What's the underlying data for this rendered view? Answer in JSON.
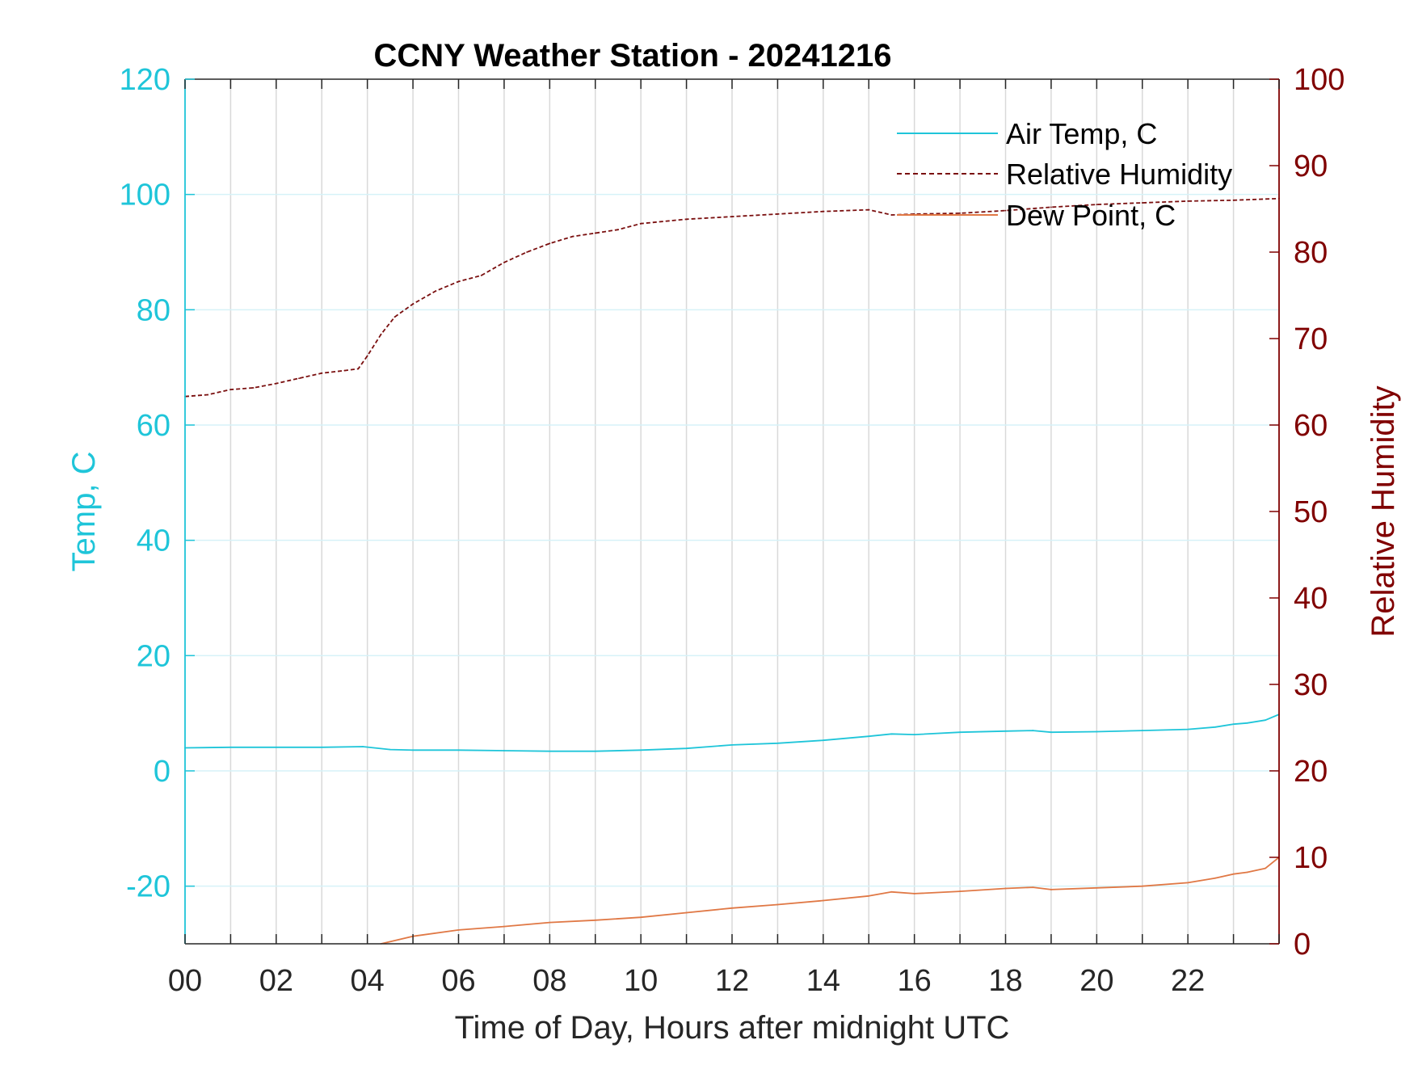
{
  "chart_data": {
    "type": "line",
    "title": "CCNY Weather Station - 20241216",
    "xlabel": "Time of Day, Hours after midnight UTC",
    "ylabel_left": "Temp, C",
    "ylabel_right": "Relative Humidity",
    "xlim": [
      0,
      24
    ],
    "ylim_left": [
      -30,
      120
    ],
    "ylim_right": [
      0,
      100
    ],
    "x_tick_labels": [
      "00",
      "02",
      "04",
      "06",
      "08",
      "10",
      "12",
      "14",
      "16",
      "18",
      "20",
      "22"
    ],
    "x_tick_values": [
      0,
      2,
      4,
      6,
      8,
      10,
      12,
      14,
      16,
      18,
      20,
      22
    ],
    "y_left_ticks": [
      -20,
      0,
      20,
      40,
      60,
      80,
      100,
      120
    ],
    "y_left_tick_labels": [
      "-20",
      "0",
      "20",
      "40",
      "60",
      "80",
      "100",
      "120"
    ],
    "y_right_ticks": [
      0,
      10,
      20,
      30,
      40,
      50,
      60,
      70,
      80,
      90,
      100
    ],
    "y_right_tick_labels": [
      "0",
      "10",
      "20",
      "30",
      "40",
      "50",
      "60",
      "70",
      "80",
      "90",
      "100"
    ],
    "grid": true,
    "legend_position": "top-right",
    "colors": {
      "left_axis": "#1fc5d9",
      "right_axis": "#800000",
      "air_temp": "#1fc5d9",
      "humidity": "#7a0f0f",
      "dew_point": "#e07845",
      "grid": "#d9d9d9",
      "hgrid": "#d6f2f8",
      "text": "#262626"
    },
    "series": [
      {
        "name": "Air Temp, C",
        "axis": "left",
        "style": "solid",
        "x": [
          0,
          1,
          2,
          3,
          3.9,
          4.5,
          5,
          6,
          7,
          8,
          9,
          10,
          11,
          12,
          13,
          14,
          15,
          15.5,
          16,
          17,
          18,
          18.6,
          19,
          20,
          21,
          22,
          22.6,
          23,
          23.3,
          23.7,
          24
        ],
        "y": [
          4.0,
          4.1,
          4.1,
          4.1,
          4.2,
          3.7,
          3.6,
          3.6,
          3.5,
          3.4,
          3.4,
          3.6,
          3.9,
          4.5,
          4.8,
          5.3,
          6.0,
          6.4,
          6.3,
          6.7,
          6.9,
          7.0,
          6.7,
          6.8,
          7.0,
          7.2,
          7.6,
          8.1,
          8.3,
          8.8,
          9.8
        ]
      },
      {
        "name": "Relative Humidity",
        "axis": "right",
        "style": "dashed",
        "x": [
          0,
          0.5,
          1,
          1.5,
          2,
          2.5,
          3,
          3.5,
          3.8,
          4,
          4.3,
          4.6,
          5,
          5.5,
          6,
          6.5,
          7,
          7.5,
          8,
          8.5,
          9,
          9.5,
          10,
          11,
          12,
          13,
          14,
          15,
          15.5,
          16,
          17,
          18,
          19,
          20,
          21,
          22,
          23,
          24
        ],
        "y": [
          63.3,
          63.5,
          64.1,
          64.3,
          64.8,
          65.4,
          66.0,
          66.3,
          66.5,
          68.0,
          70.5,
          72.5,
          74.0,
          75.5,
          76.6,
          77.3,
          78.8,
          80.0,
          81.0,
          81.8,
          82.2,
          82.6,
          83.3,
          83.8,
          84.1,
          84.4,
          84.7,
          84.9,
          84.3,
          84.4,
          84.5,
          84.8,
          85.2,
          85.5,
          85.7,
          85.9,
          86.0,
          86.2
        ]
      },
      {
        "name": "Dew Point, C",
        "axis": "left",
        "style": "solid",
        "x": [
          0,
          1,
          2,
          3,
          4,
          4.3,
          5,
          6,
          7,
          8,
          9,
          10,
          11,
          12,
          13,
          14,
          15,
          15.5,
          16,
          17,
          18,
          18.6,
          19,
          20,
          21,
          22,
          22.6,
          23,
          23.3,
          23.7,
          24
        ],
        "y": [
          -38.0,
          -36.0,
          -34.0,
          -32.5,
          -31.0,
          -30.0,
          -28.7,
          -27.6,
          -27.0,
          -26.3,
          -25.9,
          -25.4,
          -24.6,
          -23.8,
          -23.2,
          -22.5,
          -21.7,
          -21.0,
          -21.3,
          -20.9,
          -20.4,
          -20.2,
          -20.6,
          -20.3,
          -20.0,
          -19.4,
          -18.6,
          -17.9,
          -17.6,
          -16.9,
          -15.0
        ]
      }
    ]
  }
}
